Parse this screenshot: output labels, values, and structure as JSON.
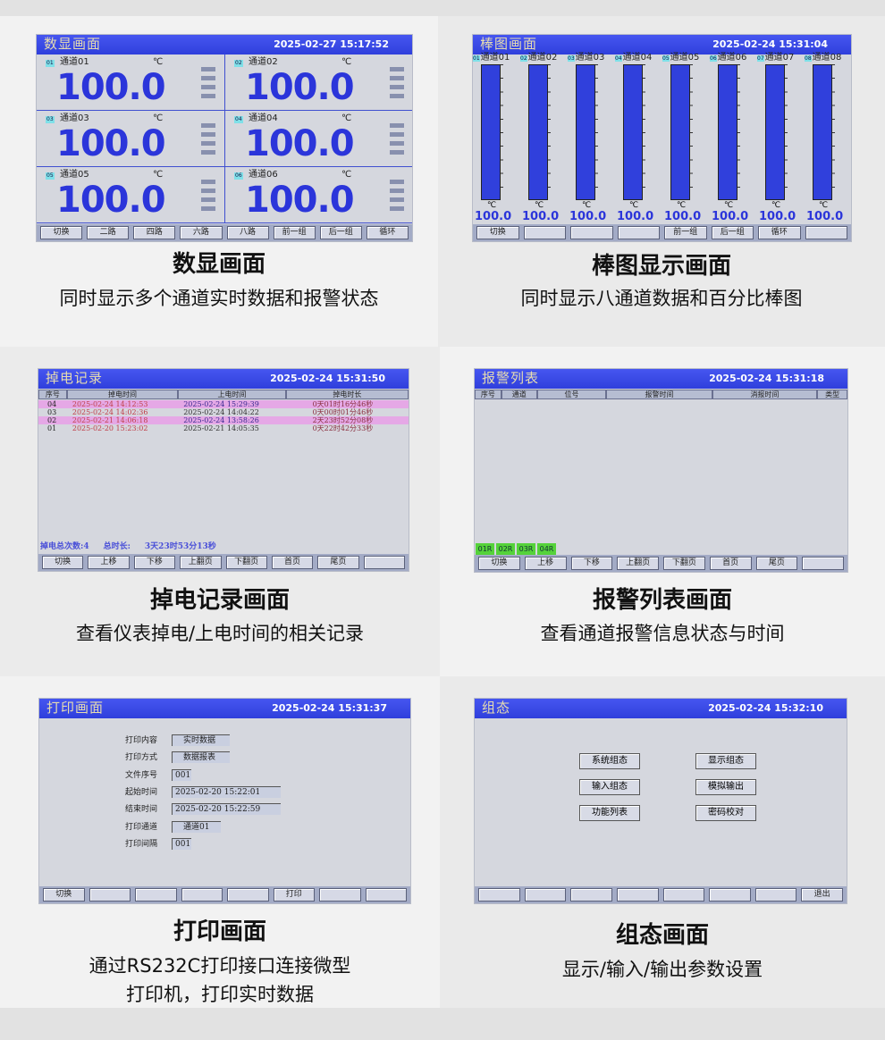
{
  "colors": {
    "titlebar": "#3848e4",
    "value": "#2b35da",
    "alarm_tag": "#55d23a",
    "highlight_row": "#e5a8e6"
  },
  "panels": [
    {
      "caption": {
        "title": "数显画面",
        "subtitle": "同时显示多个通道实时数据和报警状态"
      },
      "screen": {
        "title": "数显画面",
        "datetime": "2025-02-27 15:17:52",
        "channels": [
          {
            "no": "01",
            "name": "通道01",
            "unit": "℃",
            "value": "100.0"
          },
          {
            "no": "02",
            "name": "通道02",
            "unit": "℃",
            "value": "100.0"
          },
          {
            "no": "03",
            "name": "通道03",
            "unit": "℃",
            "value": "100.0"
          },
          {
            "no": "04",
            "name": "通道04",
            "unit": "℃",
            "value": "100.0"
          },
          {
            "no": "05",
            "name": "通道05",
            "unit": "℃",
            "value": "100.0"
          },
          {
            "no": "06",
            "name": "通道06",
            "unit": "℃",
            "value": "100.0"
          }
        ],
        "buttons": [
          "切换",
          "二路",
          "四路",
          "六路",
          "八路",
          "前一组",
          "后一组",
          "循环"
        ]
      }
    },
    {
      "caption": {
        "title": "棒图显示画面",
        "subtitle": "同时显示八通道数据和百分比棒图"
      },
      "screen": {
        "title": "棒图画面",
        "datetime": "2025-02-24 15:31:04",
        "channels": [
          {
            "no": "01",
            "name": "通道01",
            "unit": "℃",
            "value": "100.0",
            "fill_percent": 100
          },
          {
            "no": "02",
            "name": "通道02",
            "unit": "℃",
            "value": "100.0",
            "fill_percent": 100
          },
          {
            "no": "03",
            "name": "通道03",
            "unit": "℃",
            "value": "100.0",
            "fill_percent": 100
          },
          {
            "no": "04",
            "name": "通道04",
            "unit": "℃",
            "value": "100.0",
            "fill_percent": 100
          },
          {
            "no": "05",
            "name": "通道05",
            "unit": "℃",
            "value": "100.0",
            "fill_percent": 100
          },
          {
            "no": "06",
            "name": "通道06",
            "unit": "℃",
            "value": "100.0",
            "fill_percent": 100
          },
          {
            "no": "07",
            "name": "通道07",
            "unit": "℃",
            "value": "100.0",
            "fill_percent": 100
          },
          {
            "no": "08",
            "name": "通道08",
            "unit": "℃",
            "value": "100.0",
            "fill_percent": 100
          }
        ],
        "buttons": [
          "切换",
          "",
          "",
          "",
          "前一组",
          "后一组",
          "循环",
          ""
        ]
      }
    },
    {
      "caption": {
        "title": "掉电记录画面",
        "subtitle": "查看仪表掉电/上电时间的相关记录"
      },
      "screen": {
        "title": "掉电记录",
        "datetime": "2025-02-24 15:31:50",
        "columns": [
          "序号",
          "掉电时间",
          "上电时间",
          "掉电时长"
        ],
        "rows": [
          [
            "04",
            "2025-02-24 14:12:53",
            "2025-02-24 15:29:39",
            "0天01时16分46秒"
          ],
          [
            "03",
            "2025-02-24 14:02:36",
            "2025-02-24 14:04:22",
            "0天00时01分46秒"
          ],
          [
            "02",
            "2025-02-21 14:06:18",
            "2025-02-24 13:58:26",
            "2天23时52分08秒"
          ],
          [
            "01",
            "2025-02-20 15:23:02",
            "2025-02-21 14:05:35",
            "0天22时42分33秒"
          ]
        ],
        "summary": {
          "count_label": "掉电总次数:4",
          "total_label": "总时长:",
          "total_value": "3天23时53分13秒"
        },
        "buttons": [
          "切换",
          "上移",
          "下移",
          "上翻页",
          "下翻页",
          "首页",
          "尾页",
          ""
        ]
      }
    },
    {
      "caption": {
        "title": "报警列表画面",
        "subtitle": "查看通道报警信息状态与时间"
      },
      "screen": {
        "title": "报警列表",
        "datetime": "2025-02-24 15:31:18",
        "columns": [
          "序号",
          "通道",
          "位号",
          "报警时间",
          "消报时间",
          "类型"
        ],
        "alarm_tags": [
          "01R",
          "02R",
          "03R",
          "04R"
        ],
        "buttons": [
          "切换",
          "上移",
          "下移",
          "上翻页",
          "下翻页",
          "首页",
          "尾页",
          ""
        ]
      }
    },
    {
      "caption": {
        "title": "打印画面",
        "subtitle": "通过RS232C打印接口连接微型",
        "subtitle2": "打印机，打印实时数据"
      },
      "screen": {
        "title": "打印画面",
        "datetime": "2025-02-24 15:31:37",
        "fields": [
          {
            "label": "打印内容",
            "value": "实时数据"
          },
          {
            "label": "打印方式",
            "value": "数据报表"
          },
          {
            "label": "文件序号",
            "value": "001"
          },
          {
            "label": "起始时间",
            "value": "2025-02-20 15:22:01"
          },
          {
            "label": "结束时间",
            "value": "2025-02-20 15:22:59"
          },
          {
            "label": "打印通道",
            "value": "通道01"
          },
          {
            "label": "打印间隔",
            "value": "001"
          }
        ],
        "buttons": [
          "切换",
          "",
          "",
          "",
          "",
          "打印",
          "",
          ""
        ]
      }
    },
    {
      "caption": {
        "title": "组态画面",
        "subtitle": "显示/输入/输出参数设置"
      },
      "screen": {
        "title": "组态",
        "datetime": "2025-02-24 15:32:10",
        "menu": [
          "系统组态",
          "显示组态",
          "输入组态",
          "模拟输出",
          "功能列表",
          "密码校对"
        ],
        "buttons": [
          "",
          "",
          "",
          "",
          "",
          "",
          "",
          "退出"
        ]
      }
    }
  ]
}
